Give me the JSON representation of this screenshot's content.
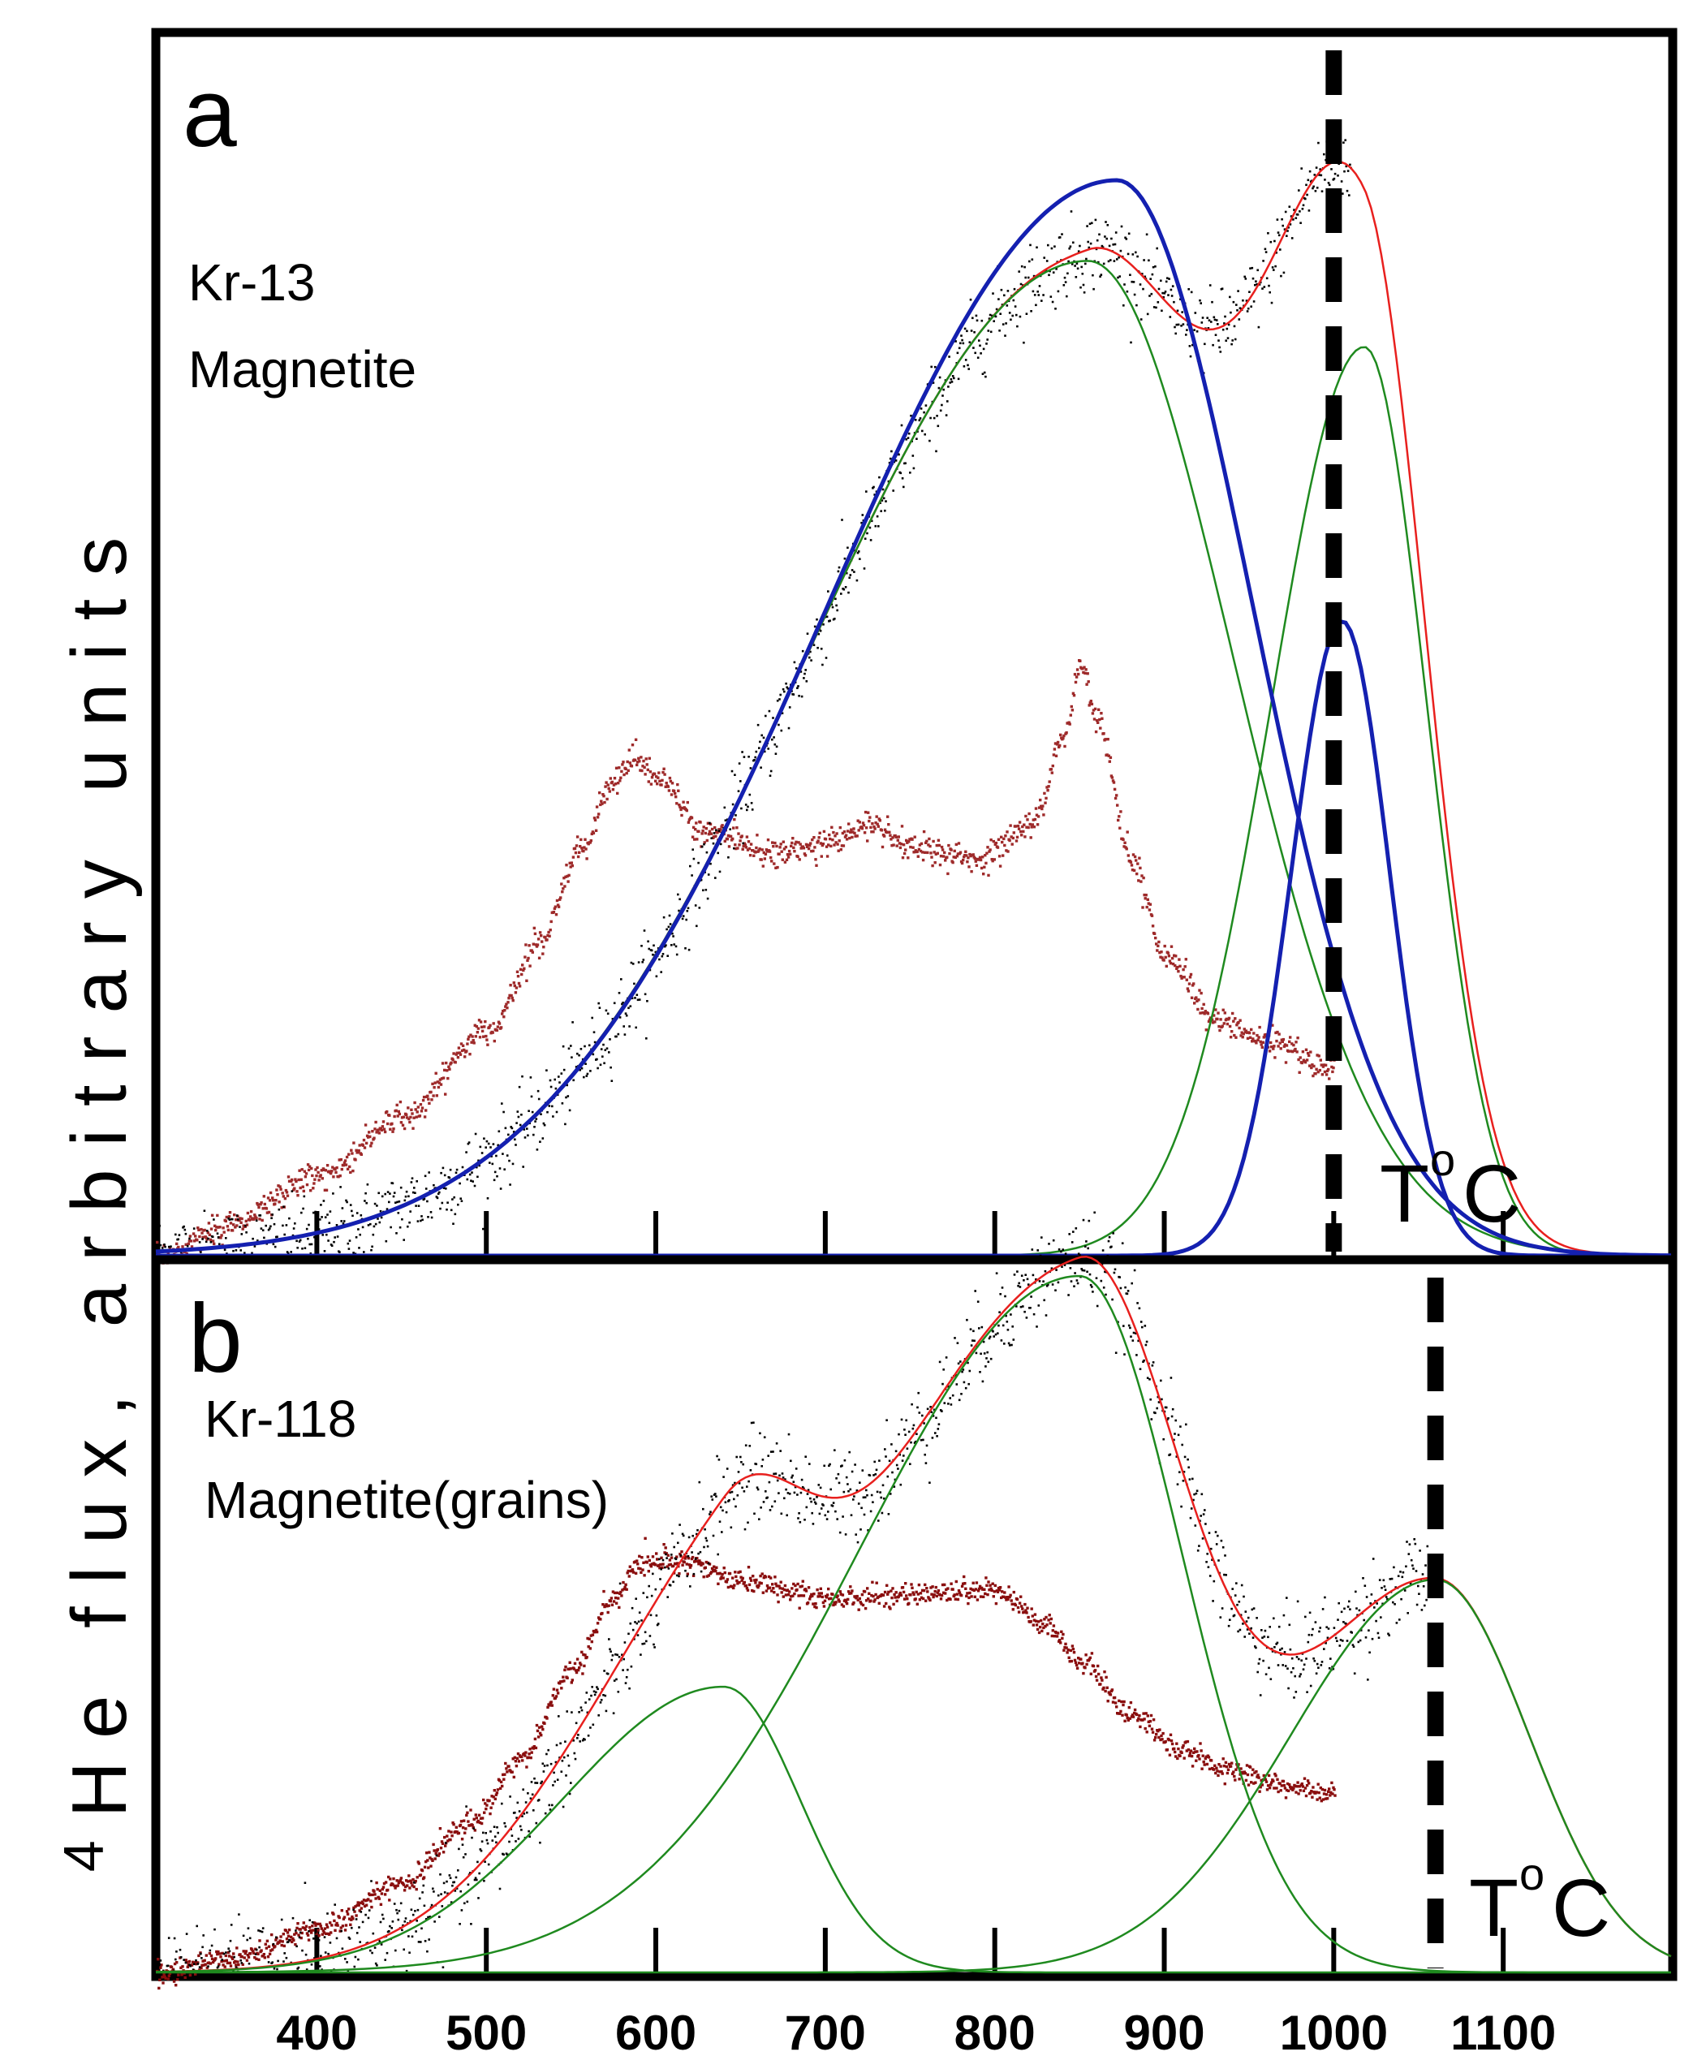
{
  "ylabel": "4He flux, arbitrary units",
  "ylabel_superscript": "4",
  "ylabel_rest": "He flux, arbitrary units",
  "xaxis": {
    "ticks": [
      400,
      500,
      600,
      700,
      800,
      900,
      1000,
      1100
    ],
    "tick_labels": [
      "400",
      "500",
      "600",
      "700",
      "800",
      "900",
      "1000",
      "1100"
    ],
    "range": [
      305,
      1200
    ]
  },
  "colors": {
    "data_points": "#000000",
    "fit_total": "#e8201e",
    "fit_component": "#1f8a1f",
    "fit_alt": "#1420b0",
    "derivative": "#9e2a2a",
    "derivative_b": "#8a0e0e",
    "marker": "#000000"
  },
  "chart_data": [
    {
      "type": "scatter",
      "panel_label": "a",
      "title": "Kr-13",
      "subtitle": "Magnetite",
      "xlabel": "T",
      "xlabel_sup": "o",
      "xlabel_unit": "C",
      "xlim": [
        305,
        1200
      ],
      "ylim": [
        0,
        1
      ],
      "marker_line_x": 1000,
      "series": [
        {
          "name": "measured 4He flux",
          "kind": "points",
          "color": "#000000",
          "x_range": [
            305,
            1010
          ],
          "model": "total_fit",
          "noise": 0.018
        },
        {
          "name": "total fit",
          "kind": "line",
          "color": "#e8201e",
          "components": [
            {
              "amplitude": 0.925,
              "center": 855,
              "sigma_left": 165,
              "sigma_right": 85
            },
            {
              "amplitude": 0.845,
              "center": 1018,
              "sigma_left": 55,
              "sigma_right": 37
            }
          ]
        },
        {
          "name": "component 1",
          "kind": "line",
          "color": "#1f8a1f",
          "components": [
            {
              "amplitude": 0.925,
              "center": 855,
              "sigma_left": 165,
              "sigma_right": 85
            }
          ]
        },
        {
          "name": "component 2",
          "kind": "line",
          "color": "#1f8a1f",
          "components": [
            {
              "amplitude": 0.845,
              "center": 1018,
              "sigma_left": 55,
              "sigma_right": 37
            }
          ]
        },
        {
          "name": "alternative fit 1",
          "kind": "line",
          "color": "#1420b0",
          "components": [
            {
              "amplitude": 1.0,
              "center": 872,
              "sigma_left": 170,
              "sigma_right": 80
            }
          ]
        },
        {
          "name": "alternative fit 2",
          "kind": "line",
          "color": "#1420b0",
          "components": [
            {
              "amplitude": 0.59,
              "center": 1005,
              "sigma_left": 30,
              "sigma_right": 28
            }
          ]
        },
        {
          "name": "derivative",
          "kind": "points",
          "color": "#9e2a2a",
          "x": [
            305,
            350,
            400,
            450,
            500,
            530,
            555,
            575,
            585,
            600,
            630,
            670,
            700,
            725,
            750,
            790,
            820,
            840,
            850,
            860,
            880,
            900,
            930,
            960,
            1000
          ],
          "y": [
            0.0,
            0.03,
            0.075,
            0.13,
            0.21,
            0.29,
            0.38,
            0.44,
            0.465,
            0.445,
            0.395,
            0.375,
            0.385,
            0.4,
            0.38,
            0.37,
            0.4,
            0.48,
            0.55,
            0.5,
            0.37,
            0.28,
            0.22,
            0.2,
            0.175
          ]
        }
      ]
    },
    {
      "type": "scatter",
      "panel_label": "b",
      "title": "Kr-118",
      "subtitle": "Magnetite(grains)",
      "xlabel": "T",
      "xlabel_sup": "o",
      "xlabel_unit": "C",
      "xlim": [
        305,
        1200
      ],
      "ylim": [
        0,
        1
      ],
      "marker_line_x": 1060,
      "series": [
        {
          "name": "measured 4He flux",
          "kind": "points",
          "color": "#000000",
          "x_range": [
            305,
            1055
          ],
          "model": "total_fit",
          "noise": 0.025
        },
        {
          "name": "total fit",
          "kind": "line",
          "color": "#e8201e",
          "components": [
            {
              "amplitude": 0.32,
              "center": 640,
              "sigma_left": 95,
              "sigma_right": 45
            },
            {
              "amplitude": 0.78,
              "center": 850,
              "sigma_left": 130,
              "sigma_right": 60
            },
            {
              "amplitude": 0.44,
              "center": 1060,
              "sigma_left": 85,
              "sigma_right": 55
            }
          ]
        },
        {
          "name": "component 1",
          "kind": "line",
          "color": "#1f8a1f",
          "components": [
            {
              "amplitude": 0.32,
              "center": 640,
              "sigma_left": 95,
              "sigma_right": 45
            }
          ]
        },
        {
          "name": "component 2",
          "kind": "line",
          "color": "#1f8a1f",
          "components": [
            {
              "amplitude": 0.78,
              "center": 850,
              "sigma_left": 130,
              "sigma_right": 60
            }
          ]
        },
        {
          "name": "component 3",
          "kind": "line",
          "color": "#1f8a1f",
          "components": [
            {
              "amplitude": 0.44,
              "center": 1060,
              "sigma_left": 85,
              "sigma_right": 55
            }
          ]
        },
        {
          "name": "derivative",
          "kind": "points",
          "color": "#8a0e0e",
          "x": [
            305,
            350,
            400,
            450,
            490,
            520,
            550,
            575,
            590,
            610,
            650,
            700,
            750,
            800,
            830,
            850,
            880,
            910,
            940,
            970,
            1000
          ],
          "y": [
            0.0,
            0.02,
            0.05,
            0.1,
            0.17,
            0.24,
            0.34,
            0.42,
            0.46,
            0.465,
            0.44,
            0.42,
            0.425,
            0.43,
            0.39,
            0.35,
            0.29,
            0.25,
            0.225,
            0.21,
            0.2
          ]
        }
      ]
    }
  ]
}
